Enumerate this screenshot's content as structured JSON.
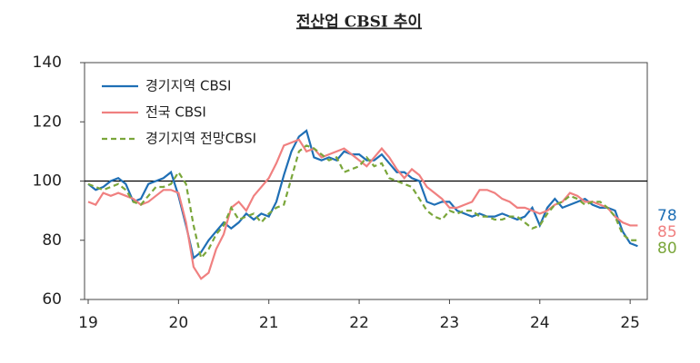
{
  "chart_data": {
    "type": "line",
    "title": "전산업 CBSI 추이",
    "categories": [
      "19",
      null,
      null,
      null,
      null,
      null,
      null,
      null,
      null,
      null,
      null,
      null,
      "20",
      null,
      null,
      null,
      null,
      null,
      null,
      null,
      null,
      null,
      null,
      null,
      "21",
      null,
      null,
      null,
      null,
      null,
      null,
      null,
      null,
      null,
      null,
      null,
      "22",
      null,
      null,
      null,
      null,
      null,
      null,
      null,
      null,
      null,
      null,
      null,
      "23",
      null,
      null,
      null,
      null,
      null,
      null,
      null,
      null,
      null,
      null,
      null,
      "24",
      null,
      null,
      null,
      null,
      null,
      null,
      null,
      null,
      null,
      null,
      null,
      "25",
      null
    ],
    "series": [
      {
        "name": "경기지역 CBSI",
        "color": "#1f6fb5",
        "dash": false,
        "values": [
          99,
          97,
          98,
          100,
          101,
          99,
          93,
          94,
          99,
          100,
          101,
          103,
          95,
          85,
          74,
          76,
          80,
          83,
          86,
          84,
          86,
          89,
          87,
          89,
          88,
          93,
          102,
          110,
          115,
          117,
          108,
          107,
          108,
          107,
          110,
          109,
          109,
          107,
          107,
          109,
          106,
          103,
          103,
          101,
          100,
          93,
          92,
          93,
          93,
          90,
          89,
          88,
          89,
          88,
          88,
          89,
          88,
          87,
          88,
          91,
          85,
          91,
          94,
          91,
          92,
          93,
          94,
          92,
          91,
          91,
          90,
          83,
          79,
          78
        ]
      },
      {
        "name": "전국 CBSI",
        "color": "#f08080",
        "dash": false,
        "values": [
          93,
          92,
          96,
          95,
          96,
          95,
          94,
          92,
          93,
          95,
          97,
          97,
          96,
          86,
          71,
          67,
          69,
          77,
          82,
          91,
          93,
          90,
          95,
          98,
          101,
          106,
          112,
          113,
          114,
          110,
          111,
          108,
          109,
          110,
          111,
          109,
          107,
          105,
          108,
          111,
          108,
          104,
          101,
          104,
          102,
          98,
          96,
          94,
          91,
          91,
          92,
          93,
          97,
          97,
          96,
          94,
          93,
          91,
          91,
          90,
          89,
          90,
          92,
          93,
          96,
          95,
          93,
          93,
          92,
          91,
          88,
          86,
          85,
          85
        ]
      },
      {
        "name": "경기지역 전망CBSI",
        "color": "#7aa63a",
        "dash": true,
        "values": [
          99,
          98,
          97,
          98,
          99,
          97,
          93,
          92,
          95,
          98,
          98,
          99,
          103,
          99,
          85,
          74,
          77,
          82,
          85,
          91,
          87,
          88,
          89,
          86,
          89,
          91,
          92,
          101,
          110,
          112,
          111,
          109,
          107,
          108,
          103,
          104,
          105,
          108,
          105,
          106,
          101,
          100,
          99,
          98,
          94,
          90,
          88,
          87,
          90,
          89,
          90,
          90,
          88,
          88,
          87,
          87,
          88,
          88,
          86,
          84,
          85,
          89,
          92,
          93,
          95,
          94,
          92,
          93,
          93,
          91,
          88,
          82,
          80,
          80
        ]
      }
    ],
    "ylim": [
      60,
      140
    ],
    "yticks": [
      60,
      80,
      100,
      120,
      140
    ],
    "reference_line": 100
  }
}
